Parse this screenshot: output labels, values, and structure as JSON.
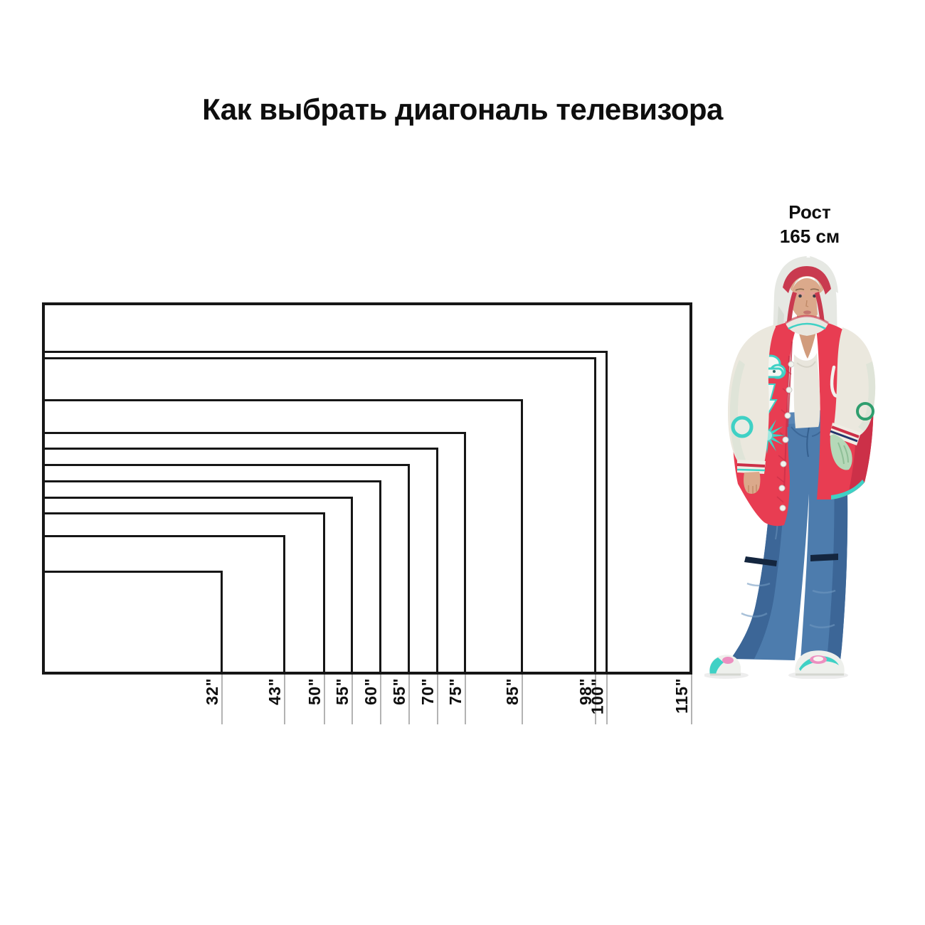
{
  "title": "Как выбрать диагональ телевизора",
  "person": {
    "height_label_line1": "Рост",
    "height_label_line2": "165 см",
    "height_cm": 165
  },
  "chart_data": {
    "type": "nested-rectangles",
    "title": "Как выбрать диагональ телевизора",
    "unit": "inch",
    "aspect_ratio": "16:9",
    "anchor": "bottom-left",
    "sizes": [
      {
        "diagonal_in": 32,
        "label": "32\""
      },
      {
        "diagonal_in": 43,
        "label": "43\""
      },
      {
        "diagonal_in": 50,
        "label": "50\""
      },
      {
        "diagonal_in": 55,
        "label": "55\""
      },
      {
        "diagonal_in": 60,
        "label": "60\""
      },
      {
        "diagonal_in": 65,
        "label": "65\""
      },
      {
        "diagonal_in": 70,
        "label": "70\""
      },
      {
        "diagonal_in": 75,
        "label": "75\""
      },
      {
        "diagonal_in": 85,
        "label": "85\""
      },
      {
        "diagonal_in": 98,
        "label": "98\""
      },
      {
        "diagonal_in": 100,
        "label": "100\""
      },
      {
        "diagonal_in": 115,
        "label": "115\""
      }
    ],
    "reference_person": {
      "label": "Рост 165 см",
      "height_cm": 165
    }
  },
  "colors": {
    "background": "#ffffff",
    "outline": "#161616",
    "text": "#0e0e0e",
    "tick_line": "#b3b3b3",
    "jacket_red": "#e83d52",
    "jacket_red_dark": "#cc3048",
    "sleeve_cream": "#ebe8de",
    "accent_teal": "#3fd1c5",
    "tank_white": "#e9e6dd",
    "denim_blue": "#4d7cad",
    "denim_dark": "#35608f",
    "hair_white": "#e6e8e3",
    "hair_red": "#c93a4f",
    "skin": "#dba98b",
    "shoe_pink": "#ec8fc0"
  }
}
